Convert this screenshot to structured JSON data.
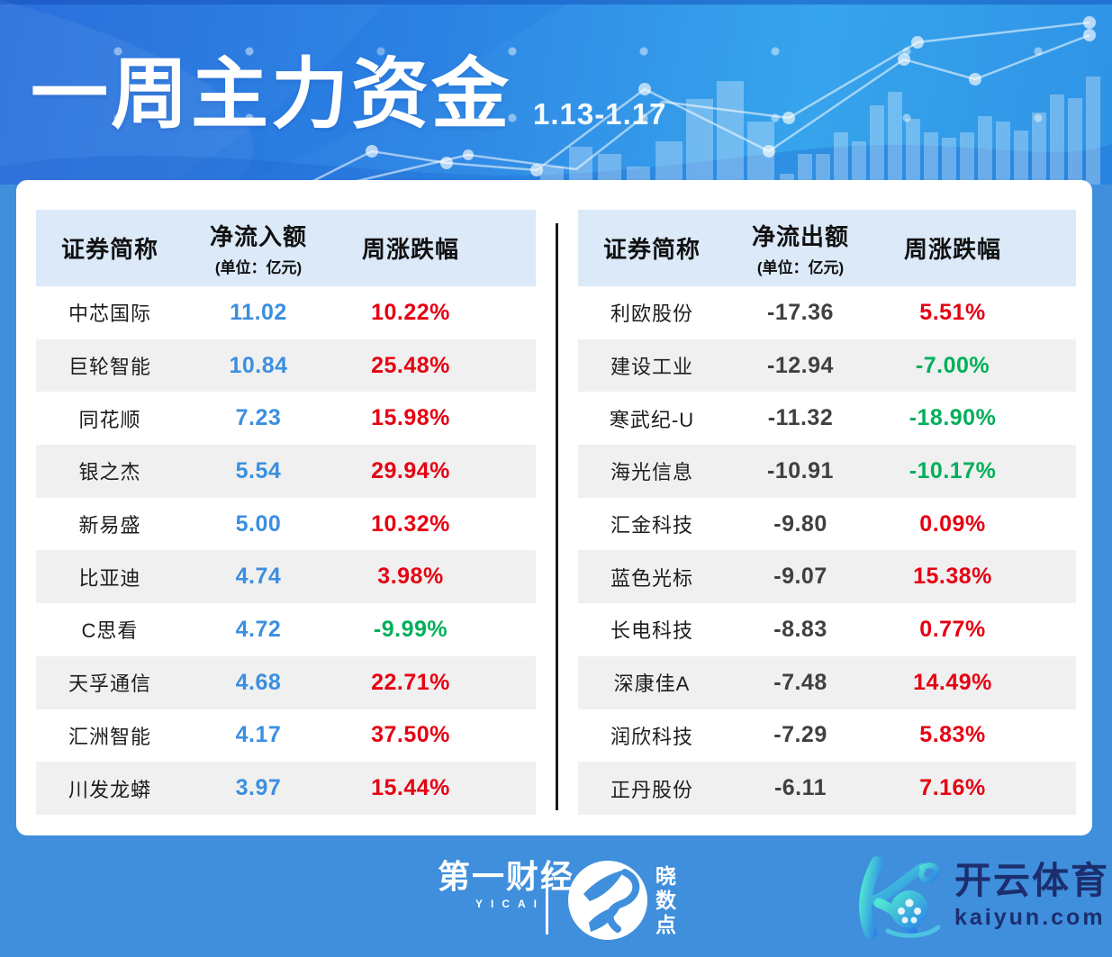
{
  "header": {
    "title": "一周主力资金",
    "date_range": "1.13-1.17"
  },
  "tables": {
    "inflow": {
      "columns": {
        "name": "证券简称",
        "value": "净流入额",
        "unit": "(单位：亿元)",
        "change": "周涨跌幅"
      },
      "rows": [
        {
          "name": "中芯国际",
          "value": "11.02",
          "change": "10.22%",
          "dir": "up"
        },
        {
          "name": "巨轮智能",
          "value": "10.84",
          "change": "25.48%",
          "dir": "up"
        },
        {
          "name": "同花顺",
          "value": "7.23",
          "change": "15.98%",
          "dir": "up"
        },
        {
          "name": "银之杰",
          "value": "5.54",
          "change": "29.94%",
          "dir": "up"
        },
        {
          "name": "新易盛",
          "value": "5.00",
          "change": "10.32%",
          "dir": "up"
        },
        {
          "name": "比亚迪",
          "value": "4.74",
          "change": "3.98%",
          "dir": "up"
        },
        {
          "name": "C思看",
          "value": "4.72",
          "change": "-9.99%",
          "dir": "down"
        },
        {
          "name": "天孚通信",
          "value": "4.68",
          "change": "22.71%",
          "dir": "up"
        },
        {
          "name": "汇洲智能",
          "value": "4.17",
          "change": "37.50%",
          "dir": "up"
        },
        {
          "name": "川发龙蟒",
          "value": "3.97",
          "change": "15.44%",
          "dir": "up"
        }
      ]
    },
    "outflow": {
      "columns": {
        "name": "证券简称",
        "value": "净流出额",
        "unit": "(单位：亿元)",
        "change": "周涨跌幅"
      },
      "rows": [
        {
          "name": "利欧股份",
          "value": "-17.36",
          "change": "5.51%",
          "dir": "up"
        },
        {
          "name": "建设工业",
          "value": "-12.94",
          "change": "-7.00%",
          "dir": "down"
        },
        {
          "name": "寒武纪-U",
          "value": "-11.32",
          "change": "-18.90%",
          "dir": "down"
        },
        {
          "name": "海光信息",
          "value": "-10.91",
          "change": "-10.17%",
          "dir": "down"
        },
        {
          "name": "汇金科技",
          "value": "-9.80",
          "change": "0.09%",
          "dir": "up"
        },
        {
          "name": "蓝色光标",
          "value": "-9.07",
          "change": "15.38%",
          "dir": "up"
        },
        {
          "name": "长电科技",
          "value": "-8.83",
          "change": "0.77%",
          "dir": "up"
        },
        {
          "name": "深康佳A",
          "value": "-7.48",
          "change": "14.49%",
          "dir": "up"
        },
        {
          "name": "润欣科技",
          "value": "-7.29",
          "change": "5.83%",
          "dir": "up"
        },
        {
          "name": "正丹股份",
          "value": "-6.11",
          "change": "7.16%",
          "dir": "up"
        }
      ]
    }
  },
  "footer": {
    "yicai": {
      "name": "第一财经",
      "sub": "YICAI"
    },
    "xsd": {
      "name": "晓数点",
      "chars": [
        "晓",
        "数",
        "点"
      ]
    },
    "kaiyun": {
      "name": "开云体育",
      "domain": "kaiyun.com"
    }
  },
  "colors": {
    "rise_red": "#e60012",
    "fall_green": "#00af5a",
    "inflow_blue": "#3b8fe0",
    "outflow_dark": "#3f4042",
    "frame_blue": "#3f8fdc",
    "table_header_bg": "#dbe9f8",
    "row_alt_bg": "#f0f0f0"
  }
}
